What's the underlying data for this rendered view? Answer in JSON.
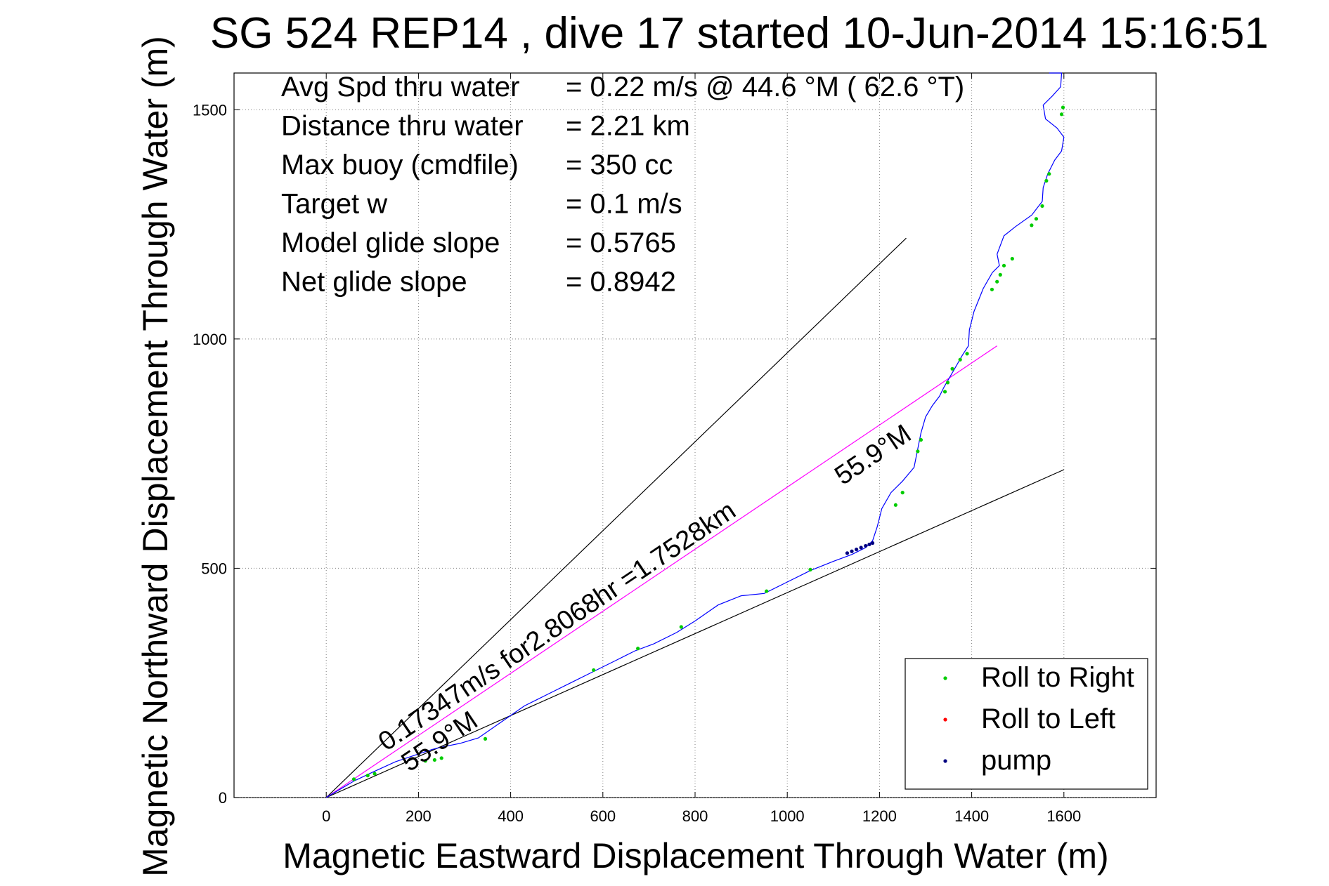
{
  "chart_data": {
    "type": "line",
    "title": "SG 524   REP14  , dive 17 started 10-Jun-2014 15:16:51",
    "xlabel": "Magnetic Eastward Displacement Through Water (m)",
    "ylabel": "Magnetic Northward Displacement Through Water (m)",
    "xlim": [
      -200,
      1800
    ],
    "ylim": [
      0,
      1580
    ],
    "xticks": [
      0,
      200,
      400,
      600,
      800,
      1000,
      1200,
      1400,
      1600
    ],
    "yticks": [
      0,
      500,
      1000,
      1500
    ],
    "grid": true,
    "legend_position": "bottom-right",
    "info_lines": [
      {
        "label": "Avg Spd thru water",
        "value": "=  0.22 m/s @  44.6 °M ( 62.6 °T)"
      },
      {
        "label": "Distance thru water",
        "value": "=  2.21 km"
      },
      {
        "label": "Max buoy (cmdfile)",
        "value": "= 350 cc"
      },
      {
        "label": "Target w",
        "value": "= 0.1 m/s"
      },
      {
        "label": "Model glide slope",
        "value": "= 0.5765"
      },
      {
        "label": "Net glide slope",
        "value": "= 0.8942"
      }
    ],
    "annotations": [
      {
        "text": "0.17347m/s for2.8068hr =1.7528km",
        "x": 130,
        "y": 100,
        "angle": 34
      },
      {
        "text": "55.9°M",
        "x": 180,
        "y": 55,
        "angle": 34
      },
      {
        "text": "55.9°M",
        "x": 1120,
        "y": 680,
        "angle": 34
      }
    ],
    "reference_lines": [
      {
        "name": "slope-upper",
        "color": "#000000",
        "x": [
          0,
          1258
        ],
        "y": [
          0,
          1220
        ]
      },
      {
        "name": "slope-lower",
        "color": "#000000",
        "x": [
          0,
          1600
        ],
        "y": [
          0,
          715
        ]
      },
      {
        "name": "current-heading",
        "color": "#ff00ff",
        "x": [
          0,
          1455
        ],
        "y": [
          0,
          985
        ]
      }
    ],
    "track": {
      "color": "#0000ff",
      "x": [
        0,
        30,
        60,
        100,
        150,
        200,
        230,
        250,
        290,
        330,
        380,
        430,
        480,
        530,
        580,
        630,
        670,
        710,
        760,
        800,
        850,
        900,
        950,
        1000,
        1050,
        1100,
        1140,
        1170,
        1185,
        1195,
        1205,
        1225,
        1250,
        1275,
        1283,
        1290,
        1300,
        1315,
        1330,
        1340,
        1360,
        1380,
        1393,
        1395,
        1405,
        1425,
        1445,
        1460,
        1455,
        1470,
        1495,
        1530,
        1553,
        1555,
        1565,
        1580,
        1595,
        1600,
        1585,
        1560,
        1555,
        1575,
        1593,
        1595,
        1585,
        1570,
        1568,
        1578,
        1588,
        1590
      ],
      "y": [
        0,
        18,
        36,
        55,
        78,
        95,
        105,
        110,
        118,
        130,
        165,
        200,
        225,
        250,
        275,
        300,
        320,
        335,
        360,
        385,
        420,
        440,
        445,
        470,
        495,
        515,
        530,
        545,
        560,
        590,
        630,
        665,
        690,
        720,
        760,
        795,
        830,
        855,
        875,
        895,
        930,
        965,
        985,
        1020,
        1060,
        1110,
        1145,
        1160,
        1185,
        1225,
        1245,
        1270,
        1300,
        1330,
        1360,
        1390,
        1410,
        1440,
        1460,
        1480,
        1510,
        1530,
        1550,
        1580,
        1580,
        1580,
        1580,
        1580,
        1580,
        1580
      ]
    },
    "series": [
      {
        "name": "Roll to Right",
        "color": "#00cc00",
        "x": [
          60,
          90,
          105,
          215,
          235,
          250,
          345,
          580,
          676,
          770,
          955,
          1050,
          1235,
          1250,
          1283,
          1290,
          1342,
          1348,
          1358,
          1375,
          1390,
          1444,
          1455,
          1462,
          1470,
          1488,
          1530,
          1540,
          1553,
          1562,
          1568,
          1595,
          1598
        ],
        "y": [
          40,
          48,
          52,
          80,
          82,
          86,
          128,
          278,
          325,
          372,
          450,
          497,
          638,
          665,
          755,
          780,
          885,
          905,
          935,
          955,
          968,
          1108,
          1125,
          1140,
          1160,
          1175,
          1248,
          1262,
          1290,
          1345,
          1360,
          1490,
          1505
        ]
      },
      {
        "name": "Roll to Left",
        "color": "#ff0000",
        "x": [],
        "y": []
      },
      {
        "name": "pump",
        "color": "#000080",
        "x": [
          1130,
          1140,
          1150,
          1160,
          1170,
          1178,
          1185
        ],
        "y": [
          533,
          537,
          541,
          545,
          549,
          552,
          555
        ]
      }
    ]
  }
}
